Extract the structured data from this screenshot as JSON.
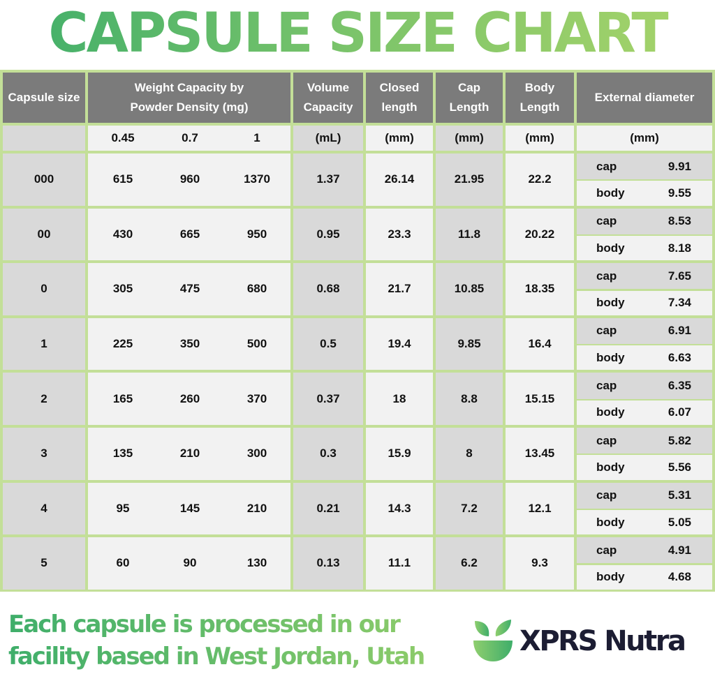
{
  "title": "CAPSULE SIZE CHART",
  "table": {
    "headers": {
      "capsule_size": "Capsule size",
      "weight_capacity": "Weight Capacity by Powder Density (mg)",
      "volume_capacity": "Volume Capacity",
      "closed_length": "Closed length",
      "cap_length": "Cap Length",
      "body_length": "Body Length",
      "external_diameter": "External diameter"
    },
    "units": {
      "densities": [
        "0.45",
        "0.7",
        "1"
      ],
      "volume": "(mL)",
      "closed": "(mm)",
      "cap": "(mm)",
      "body": "(mm)",
      "external": "(mm)"
    },
    "cap_label": "cap",
    "body_label": "body",
    "rows": [
      {
        "size": "000",
        "w": [
          "615",
          "960",
          "1370"
        ],
        "volume": "1.37",
        "closed": "26.14",
        "cap": "21.95",
        "body": "22.2",
        "ext_cap": "9.91",
        "ext_body": "9.55"
      },
      {
        "size": "00",
        "w": [
          "430",
          "665",
          "950"
        ],
        "volume": "0.95",
        "closed": "23.3",
        "cap": "11.8",
        "body": "20.22",
        "ext_cap": "8.53",
        "ext_body": "8.18"
      },
      {
        "size": "0",
        "w": [
          "305",
          "475",
          "680"
        ],
        "volume": "0.68",
        "closed": "21.7",
        "cap": "10.85",
        "body": "18.35",
        "ext_cap": "7.65",
        "ext_body": "7.34"
      },
      {
        "size": "1",
        "w": [
          "225",
          "350",
          "500"
        ],
        "volume": "0.5",
        "closed": "19.4",
        "cap": "9.85",
        "body": "16.4",
        "ext_cap": "6.91",
        "ext_body": "6.63"
      },
      {
        "size": "2",
        "w": [
          "165",
          "260",
          "370"
        ],
        "volume": "0.37",
        "closed": "18",
        "cap": "8.8",
        "body": "15.15",
        "ext_cap": "6.35",
        "ext_body": "6.07"
      },
      {
        "size": "3",
        "w": [
          "135",
          "210",
          "300"
        ],
        "volume": "0.3",
        "closed": "15.9",
        "cap": "8",
        "body": "13.45",
        "ext_cap": "5.82",
        "ext_body": "5.56"
      },
      {
        "size": "4",
        "w": [
          "95",
          "145",
          "210"
        ],
        "volume": "0.21",
        "closed": "14.3",
        "cap": "7.2",
        "body": "12.1",
        "ext_cap": "5.31",
        "ext_body": "5.05"
      },
      {
        "size": "5",
        "w": [
          "60",
          "90",
          "130"
        ],
        "volume": "0.13",
        "closed": "11.1",
        "cap": "6.2",
        "body": "9.3",
        "ext_cap": "4.91",
        "ext_body": "4.68"
      }
    ]
  },
  "footer": {
    "line1": "Each capsule is processed in our",
    "line2": "facility based in West Jordan, Utah"
  },
  "brand": {
    "name": "XPRS Nutra",
    "logo_icon": "leaf-bowl-icon",
    "colors": {
      "green": "#5cb86a",
      "navy": "#1c1d33"
    }
  }
}
